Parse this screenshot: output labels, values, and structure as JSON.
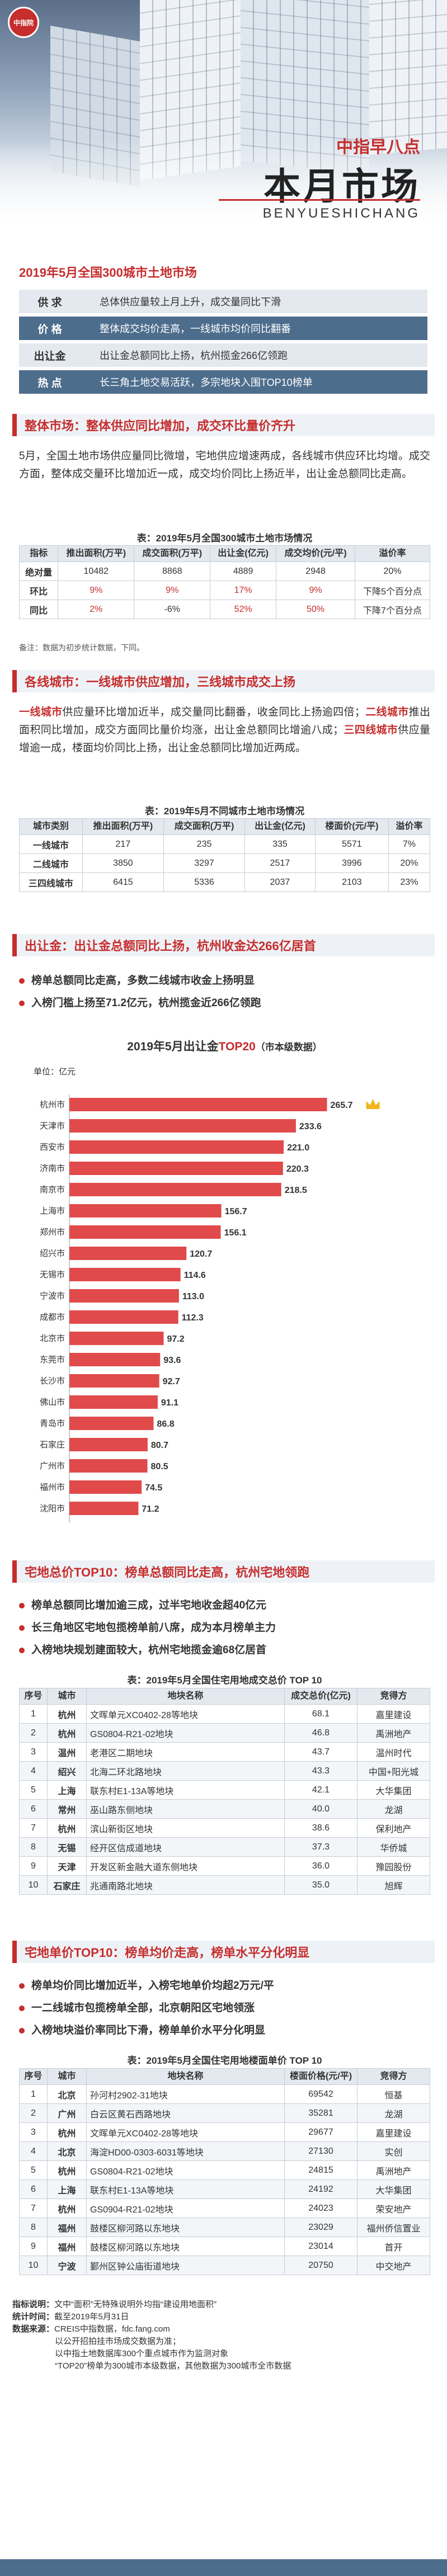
{
  "header": {
    "logo_text": "中指院",
    "brand": "中指早八点",
    "title": "本月市场",
    "pinyin": "BENYUESHICHANG"
  },
  "summary": {
    "title": "2019年5月全国300城市土地市场",
    "rows": [
      {
        "tag": "供 求",
        "text": "总体供应量较上月上升，成交量同比下滑"
      },
      {
        "tag": "价 格",
        "text": "整体成交均价走高，一线城市均价同比翻番"
      },
      {
        "tag": "出让金",
        "text": "出让金总额同比上扬，杭州揽金266亿领跑"
      },
      {
        "tag": "热 点",
        "text": "长三角土地交易活跃，多宗地块入围TOP10榜单"
      }
    ]
  },
  "sec1": {
    "head": "整体市场：整体供应同比增加，成交环比量价齐升",
    "para": "5月，全国土地市场供应量同比微增，宅地供应增速两成，各线城市供应环比均增。成交方面，整体成交量环比增加近一成，成交均价同比上扬近半，出让金总额同比走高。",
    "table_title": "表：2019年5月全国300城市土地市场情况",
    "columns": [
      "指标",
      "推出面积(万平)",
      "成交面积(万平)",
      "出让金(亿元)",
      "成交均价(元/平)",
      "溢价率"
    ],
    "rows": [
      [
        "绝对量",
        "10482",
        "8868",
        "4889",
        "2948",
        "20%"
      ],
      [
        "环比",
        "9%",
        "9%",
        "17%",
        "9%",
        "下降5个百分点"
      ],
      [
        "同比",
        "2%",
        "-6%",
        "52%",
        "50%",
        "下降7个百分点"
      ]
    ],
    "note": "备注：数据为初步统计数据，下同。"
  },
  "sec2": {
    "head": "各线城市：一线城市供应增加，三线城市成交上扬",
    "p1_a": "一线城市",
    "p1_b": "供应量环比增加近半，成交量同比翻番，收金同比上扬逾四倍；",
    "p1_c": "二线城市",
    "p1_d": "推出面积同比增加，成交方面同比量价均涨，出让金总额同比增逾八成；",
    "p1_e": "三四线城市",
    "p1_f": "供应量增逾一成，楼面均价同比上扬，出让金总额同比增加近两成。",
    "table_title": "表：2019年5月不同城市土地市场情况",
    "columns": [
      "城市类别",
      "推出面积(万平)",
      "成交面积(万平)",
      "出让金(亿元)",
      "楼面价(元/平)",
      "溢价率"
    ],
    "rows": [
      [
        "一线城市",
        "217",
        "235",
        "335",
        "5571",
        "7%"
      ],
      [
        "二线城市",
        "3850",
        "3297",
        "2517",
        "3996",
        "20%"
      ],
      [
        "三四线城市",
        "6415",
        "5336",
        "2037",
        "2103",
        "23%"
      ]
    ]
  },
  "sec3": {
    "head": "出让金：出让金总额同比上扬，杭州收金达266亿居首",
    "bullets": [
      "榜单总额同比走高，多数二线城市收金上扬明显",
      "入榜门槛上扬至71.2亿元，杭州揽金近266亿领跑"
    ]
  },
  "chart_data": {
    "type": "bar",
    "orientation": "horizontal",
    "title": "2019年5月出让金TOP20（市本级数据）",
    "title_plain": "2019年5月出让金",
    "title_red": "TOP20",
    "title_tail": "（市本级数据）",
    "unit_label": "单位：亿元",
    "categories": [
      "杭州市",
      "天津市",
      "西安市",
      "济南市",
      "南京市",
      "上海市",
      "郑州市",
      "绍兴市",
      "无锡市",
      "宁波市",
      "成都市",
      "北京市",
      "东莞市",
      "长沙市",
      "佛山市",
      "青岛市",
      "石家庄",
      "广州市",
      "福州市",
      "沈阳市"
    ],
    "values": [
      265.7,
      233.6,
      221.0,
      220.3,
      218.5,
      156.7,
      156.1,
      120.7,
      114.6,
      113.0,
      112.3,
      97.2,
      93.6,
      92.7,
      91.1,
      86.8,
      80.7,
      80.5,
      74.5,
      71.2
    ],
    "value_labels": [
      "265.7",
      "233.6",
      "221.0",
      "220.3",
      "218.5",
      "156.7",
      "156.1",
      "120.7",
      "114.6",
      "113.0",
      "112.3",
      "97.2",
      "93.6",
      "92.7",
      "91.1",
      "86.8",
      "80.7",
      "80.5",
      "74.5",
      "71.2"
    ],
    "xlim": [
      0,
      300
    ],
    "bar_color": "#e04a4a",
    "grid": false
  },
  "sec4": {
    "head": "宅地总价TOP10：榜单总额同比走高，杭州宅地领跑",
    "bullets": [
      "榜单总额同比增加逾三成，过半宅地收金超40亿元",
      "长三角地区宅地包揽榜单前八席，成为本月榜单主力",
      "入榜地块规划建面较大，杭州宅地揽金逾68亿居首"
    ],
    "table_title": "表：2019年5月全国住宅用地成交总价 TOP 10",
    "columns": [
      "序号",
      "城市",
      "地块名称",
      "成交总价(亿元)",
      "竞得方"
    ],
    "rows": [
      [
        "1",
        "杭州",
        "文晖单元XC0402-28等地块",
        "68.1",
        "嘉里建设"
      ],
      [
        "2",
        "杭州",
        "GS0804-R21-02地块",
        "46.8",
        "禹洲地产"
      ],
      [
        "3",
        "温州",
        "老港区二期地块",
        "43.7",
        "温州时代"
      ],
      [
        "4",
        "绍兴",
        "北海二环北路地块",
        "43.3",
        "中国+阳光城"
      ],
      [
        "5",
        "上海",
        "联东村E1-13A等地块",
        "42.1",
        "大华集团"
      ],
      [
        "6",
        "常州",
        "巫山路东侧地块",
        "40.0",
        "龙湖"
      ],
      [
        "7",
        "杭州",
        "滨山新街区地块",
        "38.6",
        "保利地产"
      ],
      [
        "8",
        "无锡",
        "经开区信成道地块",
        "37.3",
        "华侨城"
      ],
      [
        "9",
        "天津",
        "开发区新金融大道东侧地块",
        "36.0",
        "豫园股份"
      ],
      [
        "10",
        "石家庄",
        "兆通南路北地块",
        "35.0",
        "旭辉"
      ]
    ]
  },
  "sec5": {
    "head": "宅地单价TOP10：榜单均价走高，榜单水平分化明显",
    "bullets": [
      "榜单均价同比增加近半，入榜宅地单价均超2万元/平",
      "一二线城市包揽榜单全部，北京朝阳区宅地领涨",
      "入榜地块溢价率同比下滑，榜单单价水平分化明显"
    ],
    "table_title": "表：2019年5月全国住宅用地楼面单价 TOP 10",
    "columns": [
      "序号",
      "城市",
      "地块名称",
      "楼面价格(元/平)",
      "竞得方"
    ],
    "rows": [
      [
        "1",
        "北京",
        "孙河村2902-31地块",
        "69542",
        "恒基"
      ],
      [
        "2",
        "广州",
        "白云区黄石西路地块",
        "35281",
        "龙湖"
      ],
      [
        "3",
        "杭州",
        "文晖单元XC0402-28等地块",
        "29677",
        "嘉里建设"
      ],
      [
        "4",
        "北京",
        "海淀HD00-0303-6031等地块",
        "27130",
        "实创"
      ],
      [
        "5",
        "杭州",
        "GS0804-R21-02地块",
        "24815",
        "禹洲地产"
      ],
      [
        "6",
        "上海",
        "联东村E1-13A等地块",
        "24192",
        "大华集团"
      ],
      [
        "7",
        "杭州",
        "GS0904-R21-02地块",
        "24023",
        "荣安地产"
      ],
      [
        "8",
        "福州",
        "鼓楼区柳河路以东地块",
        "23029",
        "福州侨信置业"
      ],
      [
        "9",
        "福州",
        "鼓楼区柳河路以东地块",
        "23014",
        "首开"
      ],
      [
        "10",
        "宁波",
        "鄞州区钟公庙街道地块",
        "20750",
        "中交地产"
      ]
    ]
  },
  "footer": {
    "line1_label": "指标说明：",
    "line1": "文中“面积”无特殊说明外均指“建设用地面积”",
    "line2_label": "统计时间：",
    "line2": "截至2019年5月31日",
    "line3_label": "数据来源：",
    "line3": "CREIS中指数据，fdc.fang.com",
    "line4": "以公开招拍挂市场成交数据为准；",
    "line5": "以中指土地数据库300个重点城市作为监测对象",
    "line6": "“TOP20”榜单为300城市本级数据，其他数据为300城市全市数据"
  }
}
